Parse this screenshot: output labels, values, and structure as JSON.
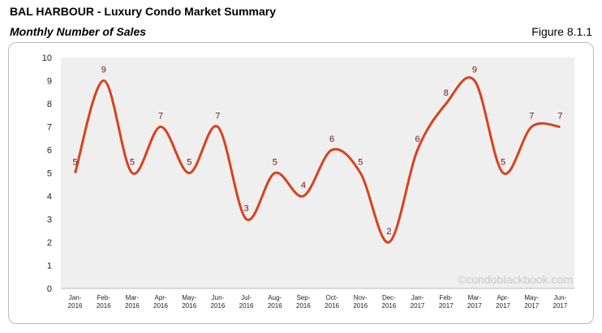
{
  "title": "BAL HARBOUR - Luxury Condo Market Summary",
  "subtitle": "Monthly Number of Sales",
  "figure_label": "Figure 8.1.1",
  "chart_data": {
    "type": "line",
    "categories": [
      "Jan- 2016",
      "Feb- 2016",
      "Mar- 2016",
      "Apr- 2016",
      "May- 2016",
      "Jun- 2016",
      "Jul- 2016",
      "Aug- 2016",
      "Sep- 2016",
      "Oct- 2016",
      "Nov- 2016",
      "Dec- 2016",
      "Jan- 2017",
      "Feb- 2017",
      "Mar- 2017",
      "Apr- 2017",
      "May- 2017",
      "Jun- 2017"
    ],
    "values": [
      5,
      9,
      5,
      7,
      5,
      7,
      3,
      5,
      4,
      6,
      5,
      2,
      6,
      8,
      9,
      5,
      7,
      7
    ],
    "color": "#d9411e",
    "label_color": "#7a1010",
    "ylim": [
      0,
      10
    ],
    "yticks": [
      0,
      1,
      2,
      3,
      4,
      5,
      6,
      7,
      8,
      9,
      10
    ],
    "grid": false,
    "smooth": true,
    "watermark": "©condoblackbook.com"
  }
}
